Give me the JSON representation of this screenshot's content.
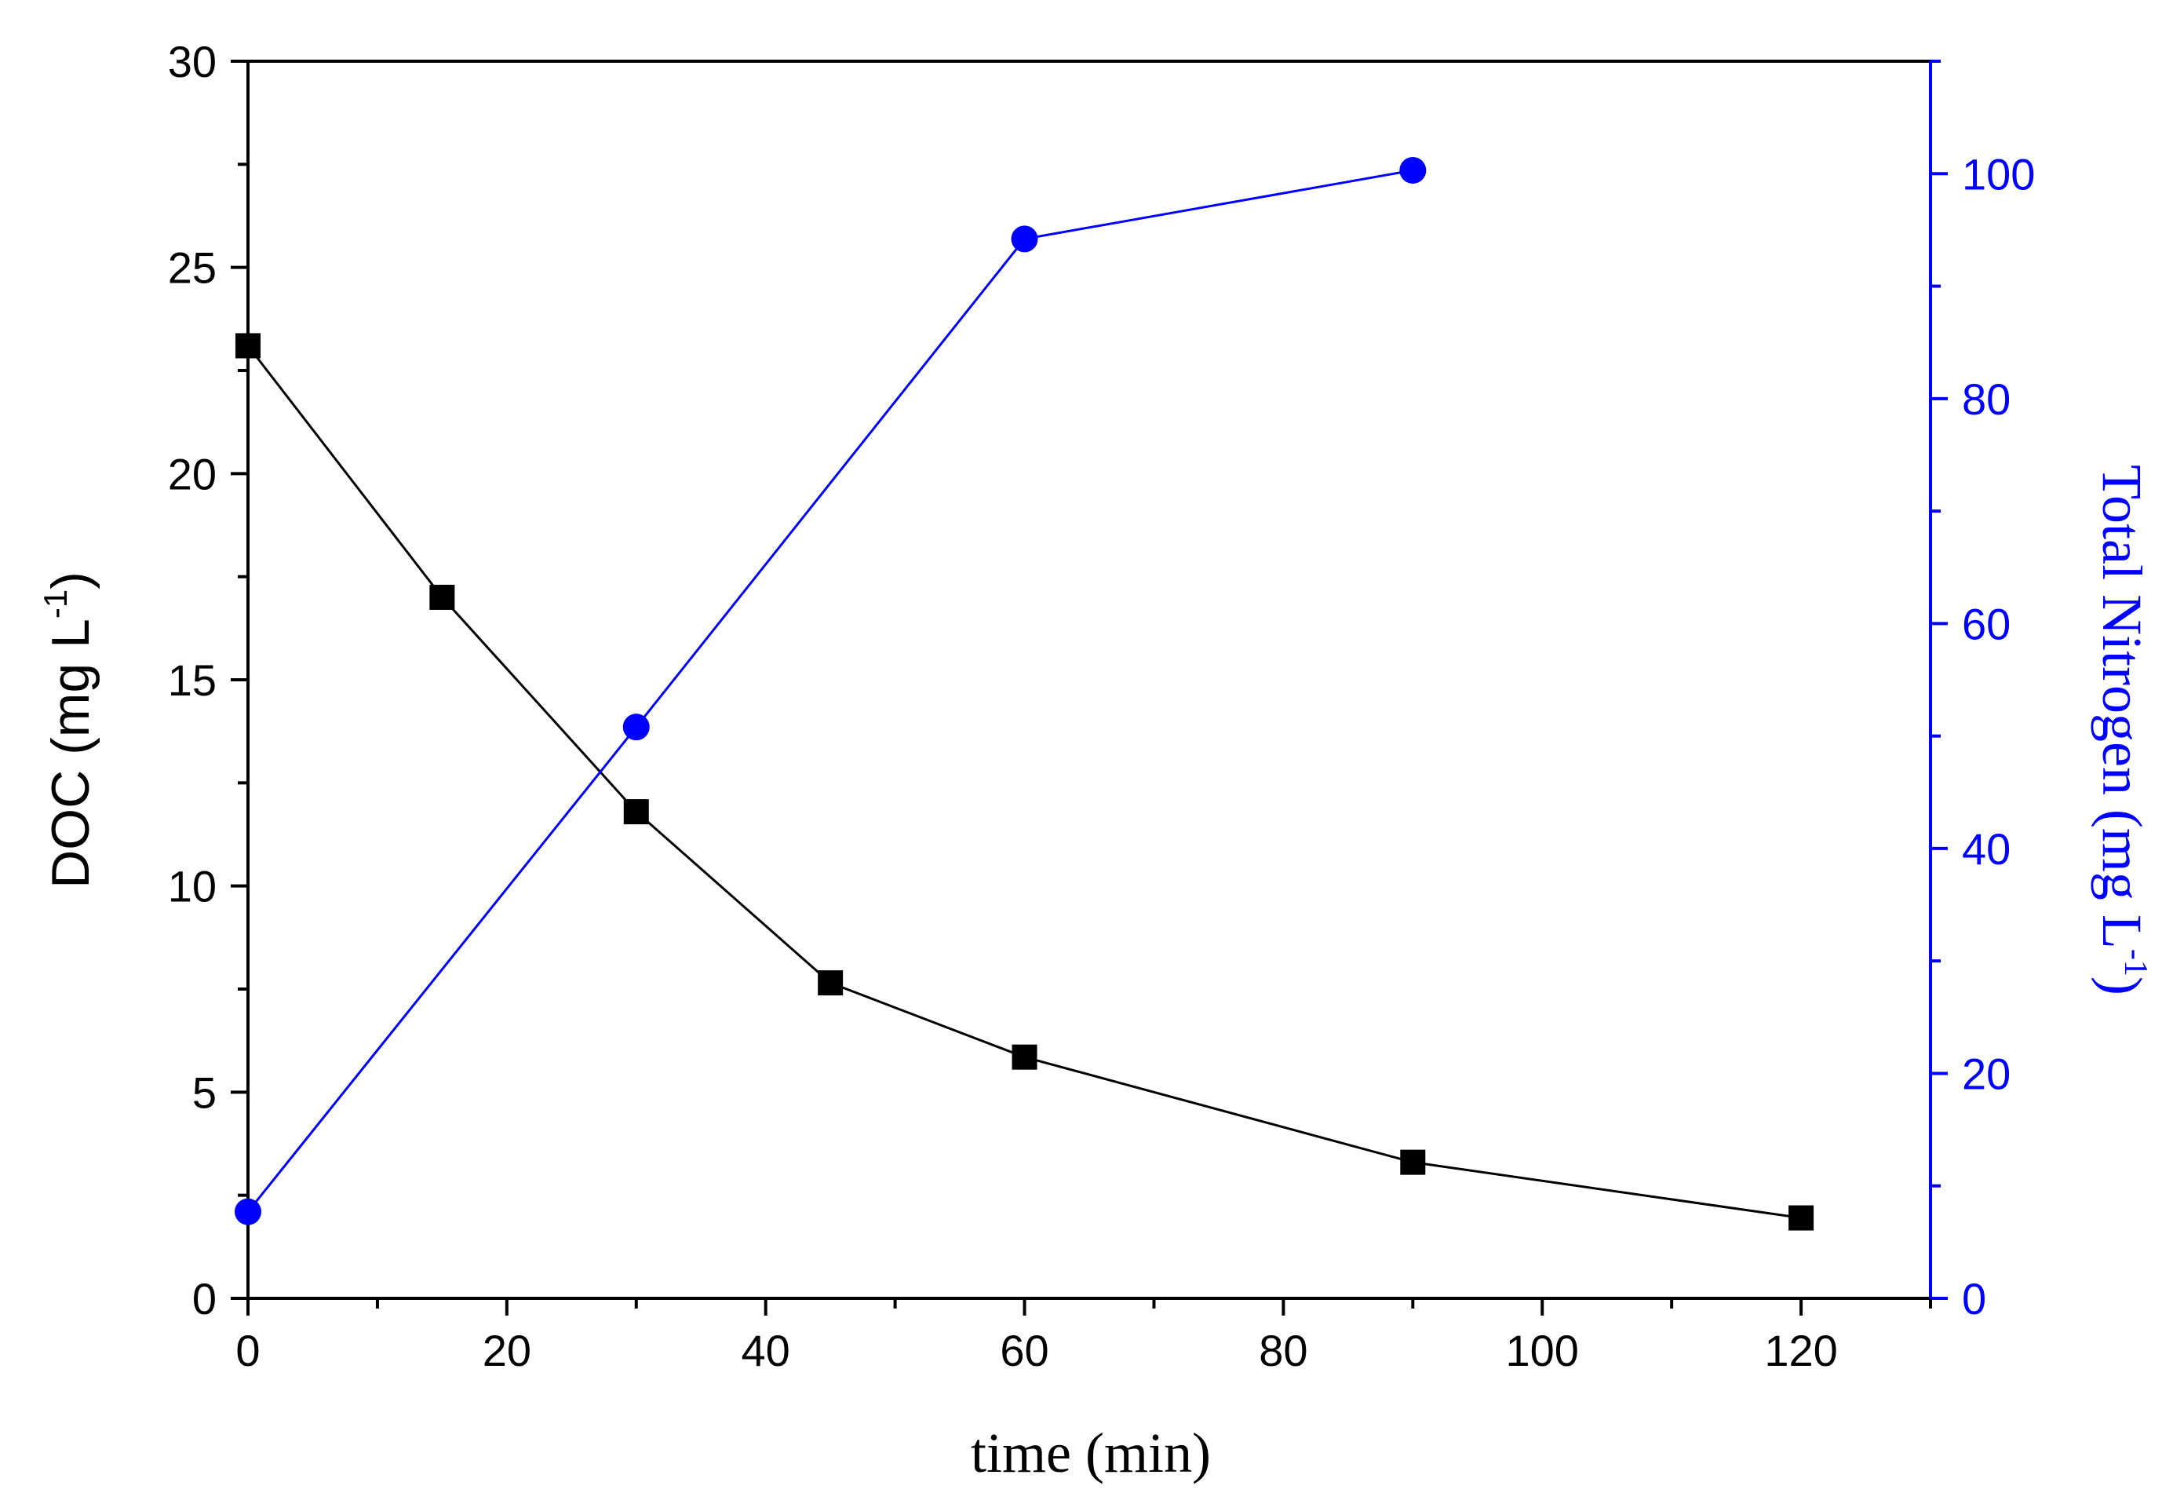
{
  "chart_data": {
    "type": "line",
    "title": "",
    "xlabel": "time (min)",
    "ylabel_left": {
      "main": "DOC (mg L",
      "sup": "-1",
      "close": ")"
    },
    "ylabel_right": {
      "main": "Total Nitrogen (mg L",
      "sup": "-1",
      "close": ")"
    },
    "xlim": [
      0,
      130
    ],
    "ylim_left": [
      0,
      30
    ],
    "ylim_right": [
      0,
      110
    ],
    "x_ticks": [
      0,
      20,
      40,
      60,
      80,
      100,
      120
    ],
    "x_ticks_minor": [
      10,
      30,
      50,
      70,
      90,
      110,
      130
    ],
    "y_left_ticks": [
      0,
      5,
      10,
      15,
      20,
      25,
      30
    ],
    "y_left_ticks_minor": [
      2.5,
      7.5,
      12.5,
      17.5,
      22.5,
      27.5
    ],
    "y_right_ticks": [
      0,
      20,
      40,
      60,
      80,
      100
    ],
    "y_right_ticks_minor": [
      10,
      30,
      50,
      70,
      90,
      110
    ],
    "series": [
      {
        "name": "DOC",
        "axis": "left",
        "marker": "square",
        "color": "#000000",
        "x": [
          0,
          15,
          30,
          45,
          60,
          90,
          120
        ],
        "values": [
          23.1,
          17.0,
          11.8,
          7.65,
          5.85,
          3.3,
          1.95
        ]
      },
      {
        "name": "Total Nitrogen",
        "axis": "right",
        "marker": "circle",
        "color": "#0000ff",
        "x": [
          0,
          30,
          60,
          90
        ],
        "values": [
          7.7,
          50.8,
          94.2,
          100.3
        ]
      }
    ],
    "grid": false,
    "legend": "none",
    "axis_colors": {
      "left": "#000000",
      "bottom": "#000000",
      "right": "#0000ff"
    }
  }
}
